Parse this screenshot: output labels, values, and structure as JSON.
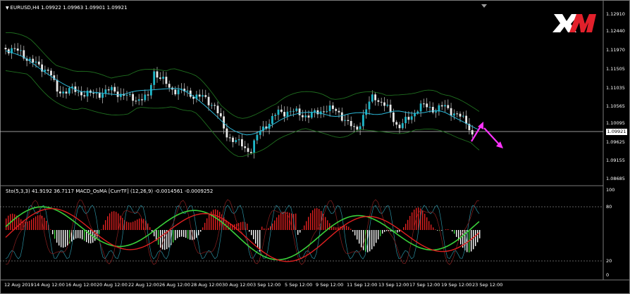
{
  "window": {
    "title": "EURUSD,H4 1.09922 1.09963 1.09901 1.09921",
    "indicator_caption": "Sto(5,3,3) 41.9192 36.7117  MACD_OsMA [CurrTF] (12,26,9) -0.0014561 -0.0009252",
    "current_price": "1.09921",
    "logo_text": "XM",
    "logo_color": "#e2202b"
  },
  "price_axis": [
    "1.12910",
    "1.12440",
    "1.11970",
    "1.11505",
    "1.11035",
    "1.10565",
    "1.10095",
    "1.09625",
    "1.09155",
    "1.08685"
  ],
  "osc_axis": [
    "100",
    "80",
    "20",
    "0"
  ],
  "time_axis": [
    "12 Aug 2019",
    "14 Aug 12:00",
    "16 Aug 12:00",
    "20 Aug 12:00",
    "22 Aug 12:00",
    "26 Aug 12:00",
    "28 Aug 12:00",
    "30 Aug 12:00",
    "3 Sep 12:00",
    "5 Sep 12:00",
    "9 Sep 12:00",
    "11 Sep 12:00",
    "13 Sep 12:00",
    "17 Sep 12:00",
    "19 Sep 12:00",
    "23 Sep 12:00"
  ],
  "colors": {
    "bull": "#1fb7c9",
    "bear": "#e8e8e8",
    "candle_wick": "#cfcfcf",
    "bollinger": "#1f6e1f",
    "ma": "#2bb8d8",
    "stoch_main": "#3ad13a",
    "stoch_signal": "#e02020",
    "hist_pos": "#e02020",
    "hist_neg": "#ffffff",
    "hist_green": "#3ad13a",
    "arrow": "#ff33ff",
    "level": "#cccccc"
  }
}
